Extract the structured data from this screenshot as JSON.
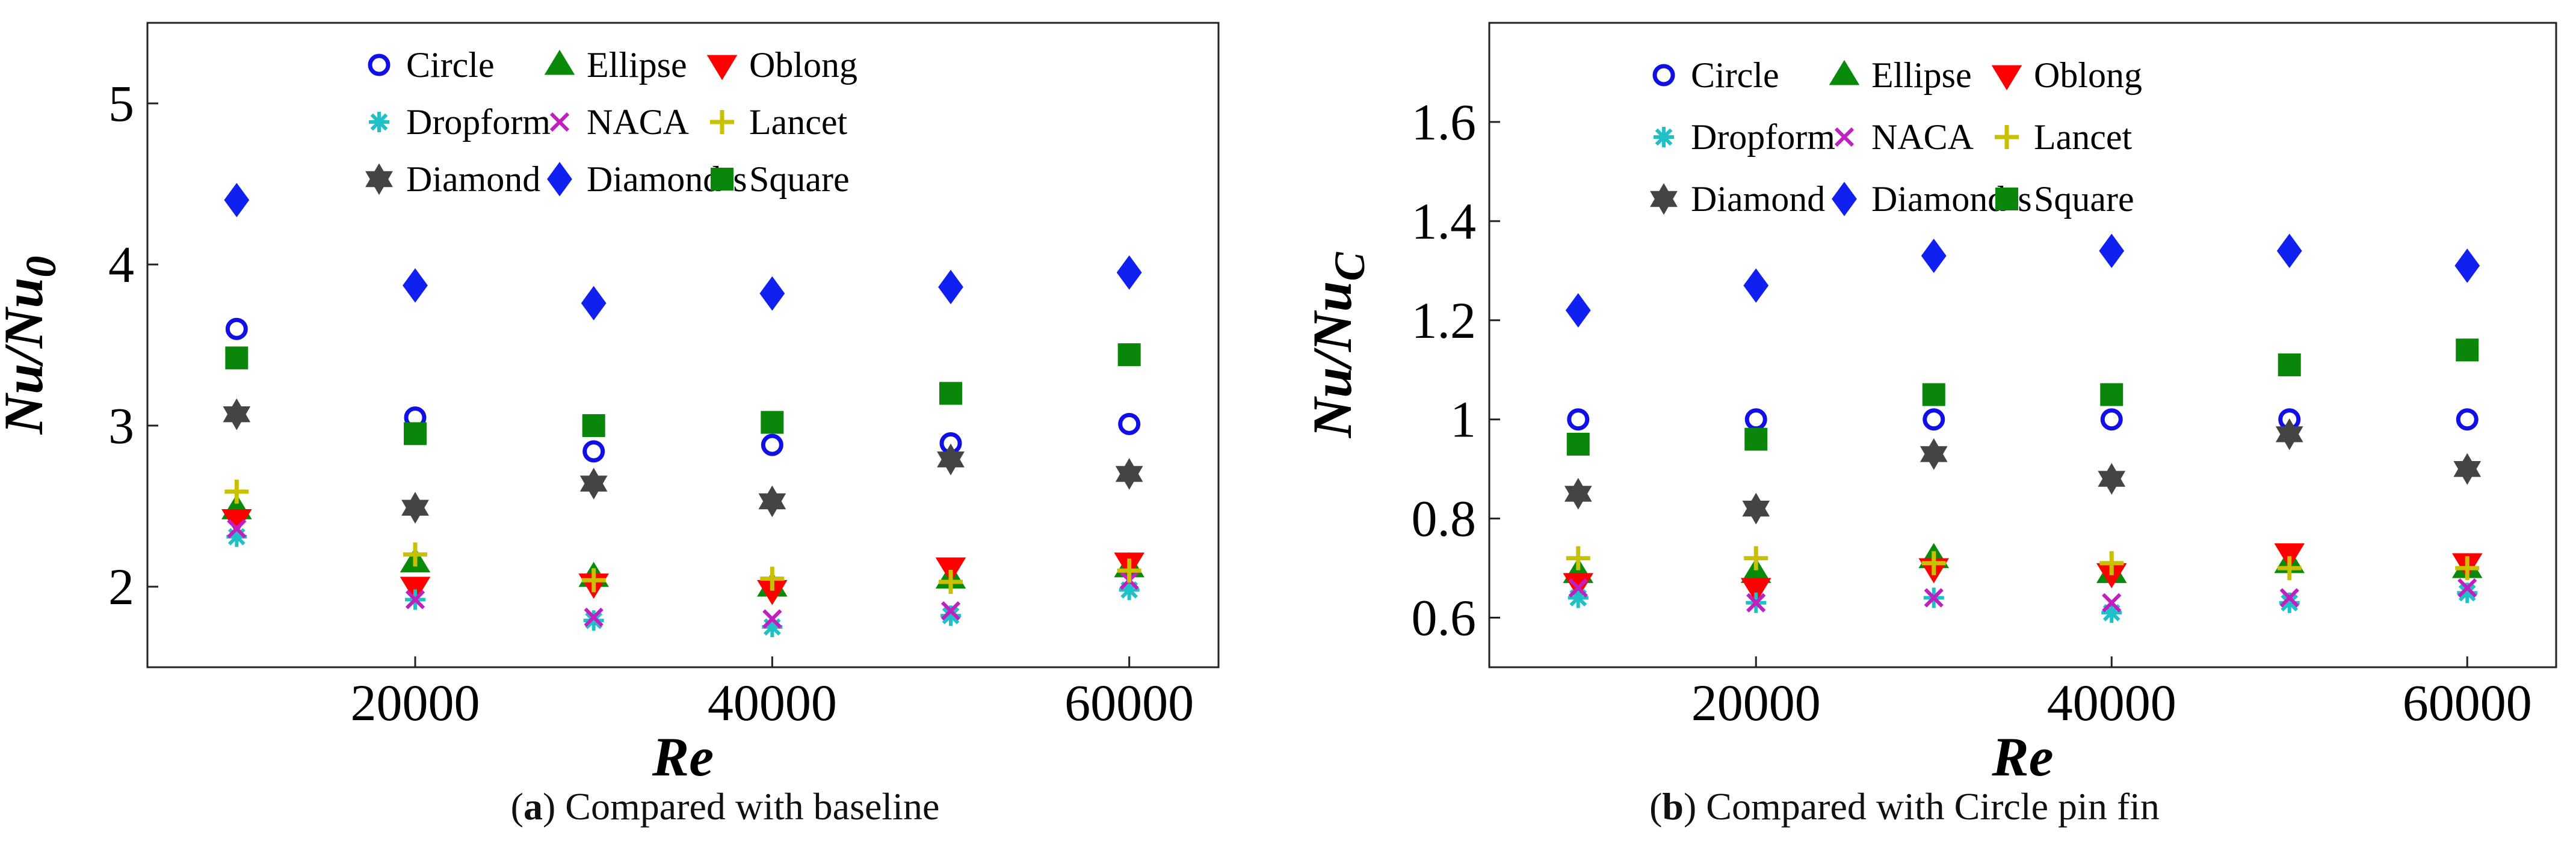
{
  "colors": {
    "Circle": "#1010e6",
    "Ellipse": "#0a8a0a",
    "Oblong": "#ff0000",
    "Dropform": "#20c0c8",
    "NACA": "#c020c0",
    "Lancet": "#c8c000",
    "Diamond": "#444444",
    "Diamond-s": "#1020f0",
    "Square": "#0a860a"
  },
  "markers": {
    "Circle": "circle-o",
    "Ellipse": "triangle-up",
    "Oblong": "triangle-down",
    "Dropform": "asterisk",
    "NACA": "cross",
    "Lancet": "plus",
    "Diamond": "hexagram",
    "Diamond-s": "diamond",
    "Square": "square"
  },
  "captions": [
    {
      "letter": "a",
      "text": " Compared with baseline"
    },
    {
      "letter": "b",
      "text": " Compared with Circle pin fin"
    }
  ],
  "chart_data": [
    {
      "id": "a",
      "type": "scatter",
      "title": "",
      "xlabel": "Re",
      "ylabel_main": "Nu/Nu",
      "ylabel_sub": "0",
      "xlim": [
        5000,
        65000
      ],
      "ylim": [
        1.5,
        5.5
      ],
      "xticks": [
        20000,
        40000,
        60000
      ],
      "xtick_labels": [
        "20000",
        "40000",
        "60000"
      ],
      "yticks": [
        2,
        3,
        4,
        5
      ],
      "ytick_labels": [
        "2",
        "3",
        "4",
        "5"
      ],
      "grid": false,
      "legend_position": "top-center",
      "x": [
        10000,
        20000,
        30000,
        40000,
        50000,
        60000
      ],
      "series": [
        {
          "name": "Circle",
          "values": [
            3.6,
            3.05,
            2.84,
            2.88,
            2.89,
            3.01
          ]
        },
        {
          "name": "Ellipse",
          "values": [
            2.48,
            2.15,
            2.06,
            2.0,
            2.05,
            2.12
          ]
        },
        {
          "name": "Oblong",
          "values": [
            2.42,
            2.0,
            2.02,
            1.98,
            2.12,
            2.15
          ]
        },
        {
          "name": "Dropform",
          "values": [
            2.31,
            1.92,
            1.79,
            1.75,
            1.82,
            1.98
          ]
        },
        {
          "name": "NACA",
          "values": [
            2.36,
            1.92,
            1.81,
            1.8,
            1.85,
            2.04
          ]
        },
        {
          "name": "Lancet",
          "values": [
            2.59,
            2.2,
            2.04,
            2.05,
            2.03,
            2.1
          ]
        },
        {
          "name": "Diamond",
          "values": [
            3.07,
            2.49,
            2.64,
            2.53,
            2.79,
            2.7
          ]
        },
        {
          "name": "Diamond-s",
          "values": [
            4.4,
            3.87,
            3.76,
            3.82,
            3.86,
            3.95
          ]
        },
        {
          "name": "Square",
          "values": [
            3.42,
            2.95,
            3.0,
            3.02,
            3.2,
            3.44
          ]
        }
      ]
    },
    {
      "id": "b",
      "type": "scatter",
      "title": "",
      "xlabel": "Re",
      "ylabel_main": "Nu/Nu",
      "ylabel_sub": "C",
      "xlim": [
        5000,
        65000
      ],
      "ylim": [
        0.5,
        1.8
      ],
      "xticks": [
        20000,
        40000,
        60000
      ],
      "xtick_labels": [
        "20000",
        "40000",
        "60000"
      ],
      "yticks": [
        0.6,
        0.8,
        1.0,
        1.2,
        1.4,
        1.6
      ],
      "ytick_labels": [
        "0.6",
        "0.8",
        "1",
        "1.2",
        "1.4",
        "1.6"
      ],
      "grid": false,
      "legend_position": "top-center",
      "x": [
        10000,
        20000,
        30000,
        40000,
        50000,
        60000
      ],
      "series": [
        {
          "name": "Circle",
          "values": [
            1.0,
            1.0,
            1.0,
            1.0,
            1.0,
            1.0
          ]
        },
        {
          "name": "Ellipse",
          "values": [
            0.69,
            0.69,
            0.72,
            0.69,
            0.71,
            0.7
          ]
        },
        {
          "name": "Oblong",
          "values": [
            0.67,
            0.66,
            0.7,
            0.69,
            0.73,
            0.71
          ]
        },
        {
          "name": "Dropform",
          "values": [
            0.64,
            0.63,
            0.64,
            0.61,
            0.63,
            0.65
          ]
        },
        {
          "name": "NACA",
          "values": [
            0.66,
            0.63,
            0.64,
            0.63,
            0.64,
            0.66
          ]
        },
        {
          "name": "Lancet",
          "values": [
            0.72,
            0.72,
            0.71,
            0.71,
            0.7,
            0.7
          ]
        },
        {
          "name": "Diamond",
          "values": [
            0.85,
            0.82,
            0.93,
            0.88,
            0.97,
            0.9
          ]
        },
        {
          "name": "Diamond-s",
          "values": [
            1.22,
            1.27,
            1.33,
            1.34,
            1.34,
            1.31
          ]
        },
        {
          "name": "Square",
          "values": [
            0.95,
            0.96,
            1.05,
            1.05,
            1.11,
            1.14
          ]
        }
      ]
    }
  ]
}
